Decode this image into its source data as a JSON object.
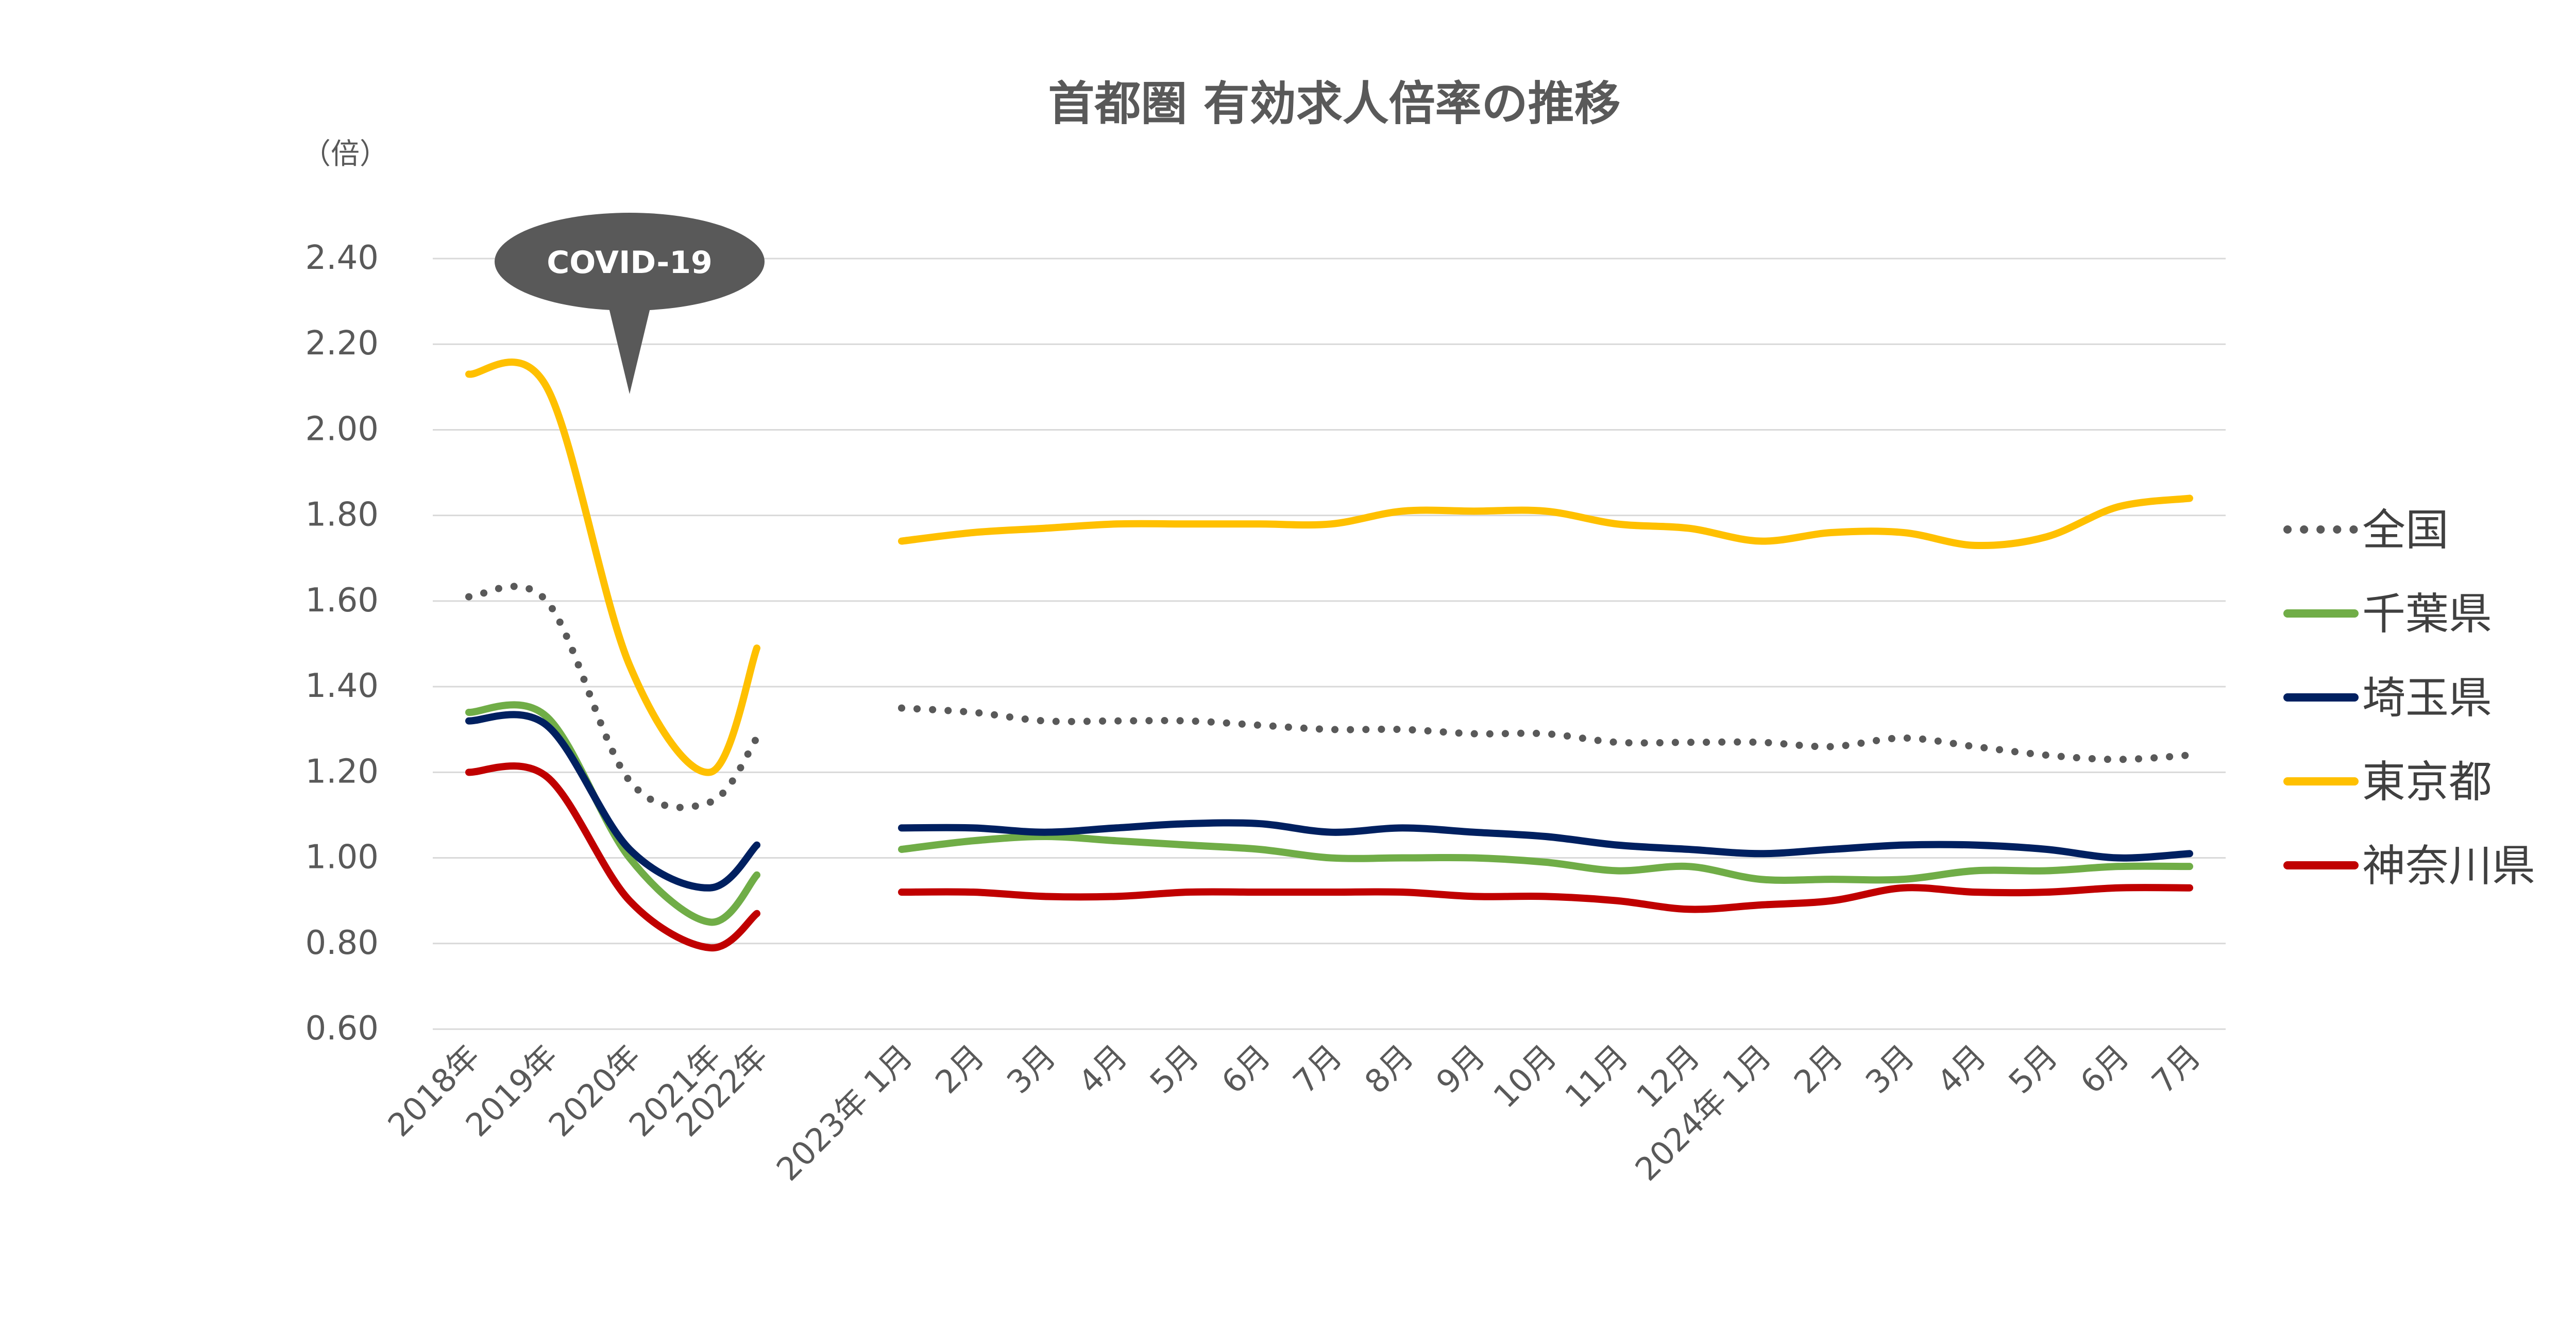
{
  "chart_data": {
    "type": "line",
    "title": "首都圏 有効求人倍率の推移",
    "ylabel": "（倍）",
    "xlabel": "",
    "ylim": [
      0.6,
      2.4
    ],
    "y_ticks": [
      "2.40",
      "2.20",
      "2.00",
      "1.80",
      "1.60",
      "1.40",
      "1.20",
      "1.00",
      "0.80",
      "0.60"
    ],
    "grid": true,
    "legend_position": "right",
    "annotation": "COVID-19",
    "annual_categories": [
      "2018年",
      "2019年",
      "2020年",
      "2021年",
      "2022年"
    ],
    "monthly_categories": [
      "2023年 1月",
      "2月",
      "3月",
      "4月",
      "5月",
      "6月",
      "7月",
      "8月",
      "9月",
      "10月",
      "11月",
      "12月",
      "2024年 1月",
      "2月",
      "3月",
      "4月",
      "5月",
      "6月",
      "7月"
    ],
    "series": [
      {
        "name": "全国",
        "color": "#595959",
        "style": "dotted",
        "annual": [
          1.61,
          1.6,
          1.18,
          1.13,
          1.28
        ],
        "monthly": [
          1.35,
          1.34,
          1.32,
          1.32,
          1.32,
          1.31,
          1.3,
          1.3,
          1.29,
          1.29,
          1.27,
          1.27,
          1.27,
          1.26,
          1.28,
          1.26,
          1.24,
          1.23,
          1.24
        ]
      },
      {
        "name": "千葉県",
        "color": "#70ad47",
        "style": "solid",
        "annual": [
          1.34,
          1.33,
          1.0,
          0.85,
          0.96
        ],
        "monthly": [
          1.02,
          1.04,
          1.05,
          1.04,
          1.03,
          1.02,
          1.0,
          1.0,
          1.0,
          0.99,
          0.97,
          0.98,
          0.95,
          0.95,
          0.95,
          0.97,
          0.97,
          0.98,
          0.98
        ]
      },
      {
        "name": "埼玉県",
        "color": "#002060",
        "style": "solid",
        "annual": [
          1.32,
          1.31,
          1.02,
          0.93,
          1.03
        ],
        "monthly": [
          1.07,
          1.07,
          1.06,
          1.07,
          1.08,
          1.08,
          1.06,
          1.07,
          1.06,
          1.05,
          1.03,
          1.02,
          1.01,
          1.02,
          1.03,
          1.03,
          1.02,
          1.0,
          1.01
        ]
      },
      {
        "name": "東京都",
        "color": "#ffc000",
        "style": "solid",
        "annual": [
          2.13,
          2.1,
          1.45,
          1.2,
          1.49
        ],
        "monthly": [
          1.74,
          1.76,
          1.77,
          1.78,
          1.78,
          1.78,
          1.78,
          1.81,
          1.81,
          1.81,
          1.78,
          1.77,
          1.74,
          1.76,
          1.76,
          1.73,
          1.75,
          1.82,
          1.84
        ]
      },
      {
        "name": "神奈川県",
        "color": "#c00000",
        "style": "solid",
        "annual": [
          1.2,
          1.19,
          0.9,
          0.79,
          0.87
        ],
        "monthly": [
          0.92,
          0.92,
          0.91,
          0.91,
          0.92,
          0.92,
          0.92,
          0.92,
          0.91,
          0.91,
          0.9,
          0.88,
          0.89,
          0.9,
          0.93,
          0.92,
          0.92,
          0.93,
          0.93
        ]
      }
    ]
  }
}
